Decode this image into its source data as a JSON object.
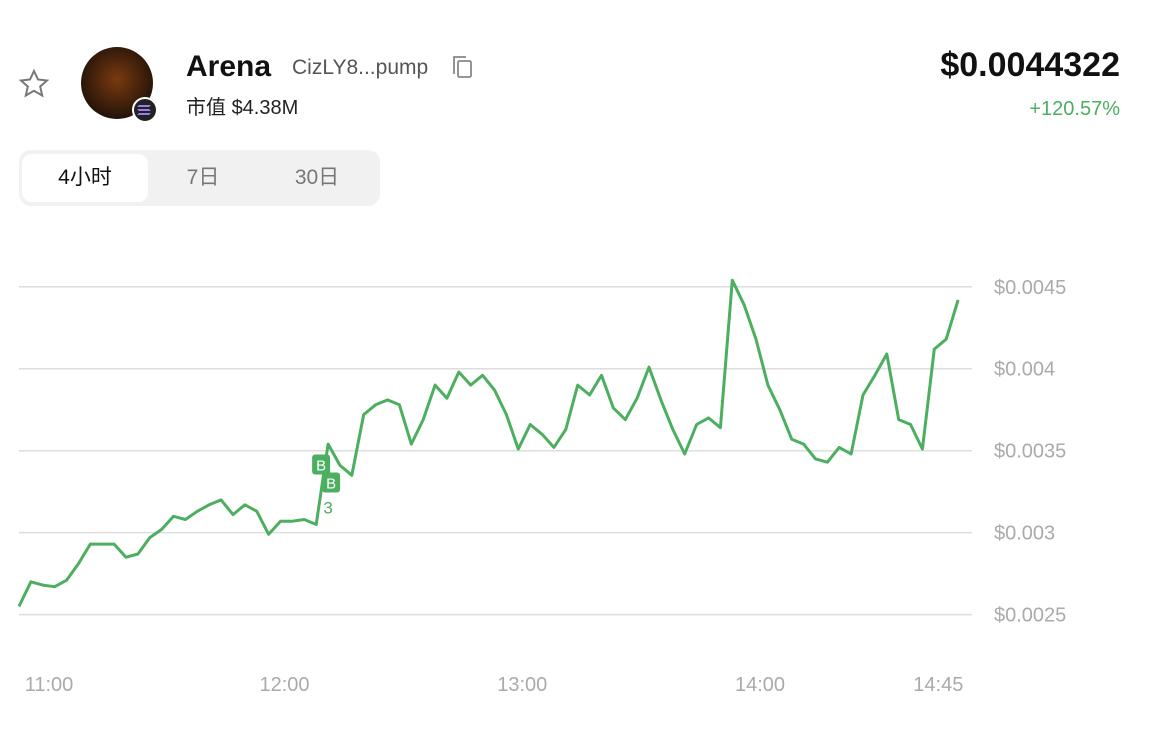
{
  "header": {
    "name": "Arena",
    "address": "CizLY8...pump",
    "market_cap_label": "市值",
    "market_cap": "$4.38M",
    "price": "$0.0044322",
    "change": "+120.57%"
  },
  "tabs": [
    "4小时",
    "7日",
    "30日"
  ],
  "chart_data": {
    "type": "line",
    "color": "#4caf60",
    "grid": true,
    "x": [
      "10:53",
      "10:56",
      "10:59",
      "11:02",
      "11:05",
      "11:08",
      "11:11",
      "11:14",
      "11:17",
      "11:20",
      "11:23",
      "11:26",
      "11:29",
      "11:32",
      "11:35",
      "11:38",
      "11:41",
      "11:44",
      "11:47",
      "11:50",
      "11:53",
      "11:56",
      "11:59",
      "12:02",
      "12:05",
      "12:08",
      "12:11",
      "12:14",
      "12:17",
      "12:20",
      "12:23",
      "12:26",
      "12:29",
      "12:32",
      "12:35",
      "12:38",
      "12:41",
      "12:44",
      "12:47",
      "12:50",
      "12:53",
      "12:56",
      "12:59",
      "13:02",
      "13:05",
      "13:08",
      "13:11",
      "13:14",
      "13:17",
      "13:20",
      "13:23",
      "13:26",
      "13:29",
      "13:32",
      "13:35",
      "13:38",
      "13:41",
      "13:44",
      "13:47",
      "13:50",
      "13:53",
      "13:56",
      "13:59",
      "14:02",
      "14:05",
      "14:08",
      "14:11",
      "14:14",
      "14:17",
      "14:20",
      "14:23",
      "14:26",
      "14:29",
      "14:32",
      "14:35",
      "14:38",
      "14:41",
      "14:44",
      "14:47",
      "14:50"
    ],
    "values": [
      0.00255,
      0.0027,
      0.00268,
      0.00267,
      0.00271,
      0.00281,
      0.00293,
      0.00293,
      0.00293,
      0.00285,
      0.00287,
      0.00297,
      0.00302,
      0.0031,
      0.00308,
      0.00313,
      0.00317,
      0.0032,
      0.00311,
      0.00317,
      0.00313,
      0.00299,
      0.00307,
      0.00307,
      0.00308,
      0.00305,
      0.00354,
      0.00341,
      0.00335,
      0.00372,
      0.00378,
      0.00381,
      0.00378,
      0.00354,
      0.00369,
      0.0039,
      0.00382,
      0.00398,
      0.0039,
      0.00396,
      0.00387,
      0.00372,
      0.00351,
      0.00366,
      0.0036,
      0.00352,
      0.00363,
      0.0039,
      0.00384,
      0.00396,
      0.00376,
      0.00369,
      0.00382,
      0.00401,
      0.00381,
      0.00363,
      0.00348,
      0.00366,
      0.0037,
      0.00364,
      0.00454,
      0.00439,
      0.00418,
      0.0039,
      0.00375,
      0.00357,
      0.00354,
      0.00345,
      0.00343,
      0.00352,
      0.00348,
      0.00384,
      0.00396,
      0.00409,
      0.00369,
      0.00366,
      0.00351,
      0.00412,
      0.00418,
      0.00442
    ],
    "markers": [
      {
        "label": "B",
        "x": "12:10",
        "value": 0.00341
      },
      {
        "label": "B",
        "x": "12:10",
        "value": 0.0033
      }
    ],
    "marker_count": "3",
    "xlim": [
      "10:53",
      "14:53"
    ],
    "xticks": [
      "11:00",
      "12:00",
      "13:00",
      "14:00",
      "14:45"
    ],
    "ylim": [
      0.0024,
      0.0047
    ],
    "yticks": [
      {
        "value": 0.0025,
        "label": "$0.0025"
      },
      {
        "value": 0.003,
        "label": "$0.003"
      },
      {
        "value": 0.0035,
        "label": "$0.0035"
      },
      {
        "value": 0.004,
        "label": "$0.004"
      },
      {
        "value": 0.0045,
        "label": "$0.0045"
      }
    ]
  }
}
